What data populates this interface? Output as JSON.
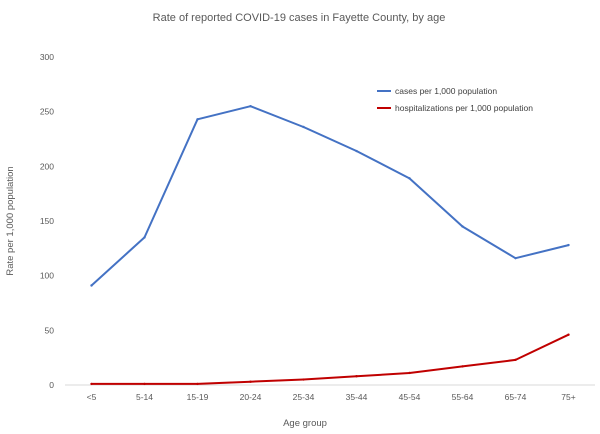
{
  "chart_data": {
    "type": "line",
    "title": "Rate of reported COVID-19 cases in Fayette County, by age",
    "xlabel": "Age group",
    "ylabel": "Rate per 1,000 population",
    "categories": [
      "<5",
      "5-14",
      "15-19",
      "20-24",
      "25-34",
      "35-44",
      "45-54",
      "55-64",
      "65-74",
      "75+"
    ],
    "ylim": [
      0,
      300
    ],
    "yticks": [
      0,
      50,
      100,
      150,
      200,
      250,
      300
    ],
    "grid": false,
    "legend_position": "top-right",
    "series": [
      {
        "name": "cases per 1,000 population",
        "color": "#4472C4",
        "values": [
          91,
          135,
          243,
          255,
          236,
          214,
          189,
          145,
          116,
          128
        ]
      },
      {
        "name": "hospitalizations per 1,000 population",
        "color": "#C00000",
        "values": [
          1,
          1,
          1,
          3,
          5,
          8,
          11,
          17,
          23,
          46
        ]
      }
    ]
  }
}
